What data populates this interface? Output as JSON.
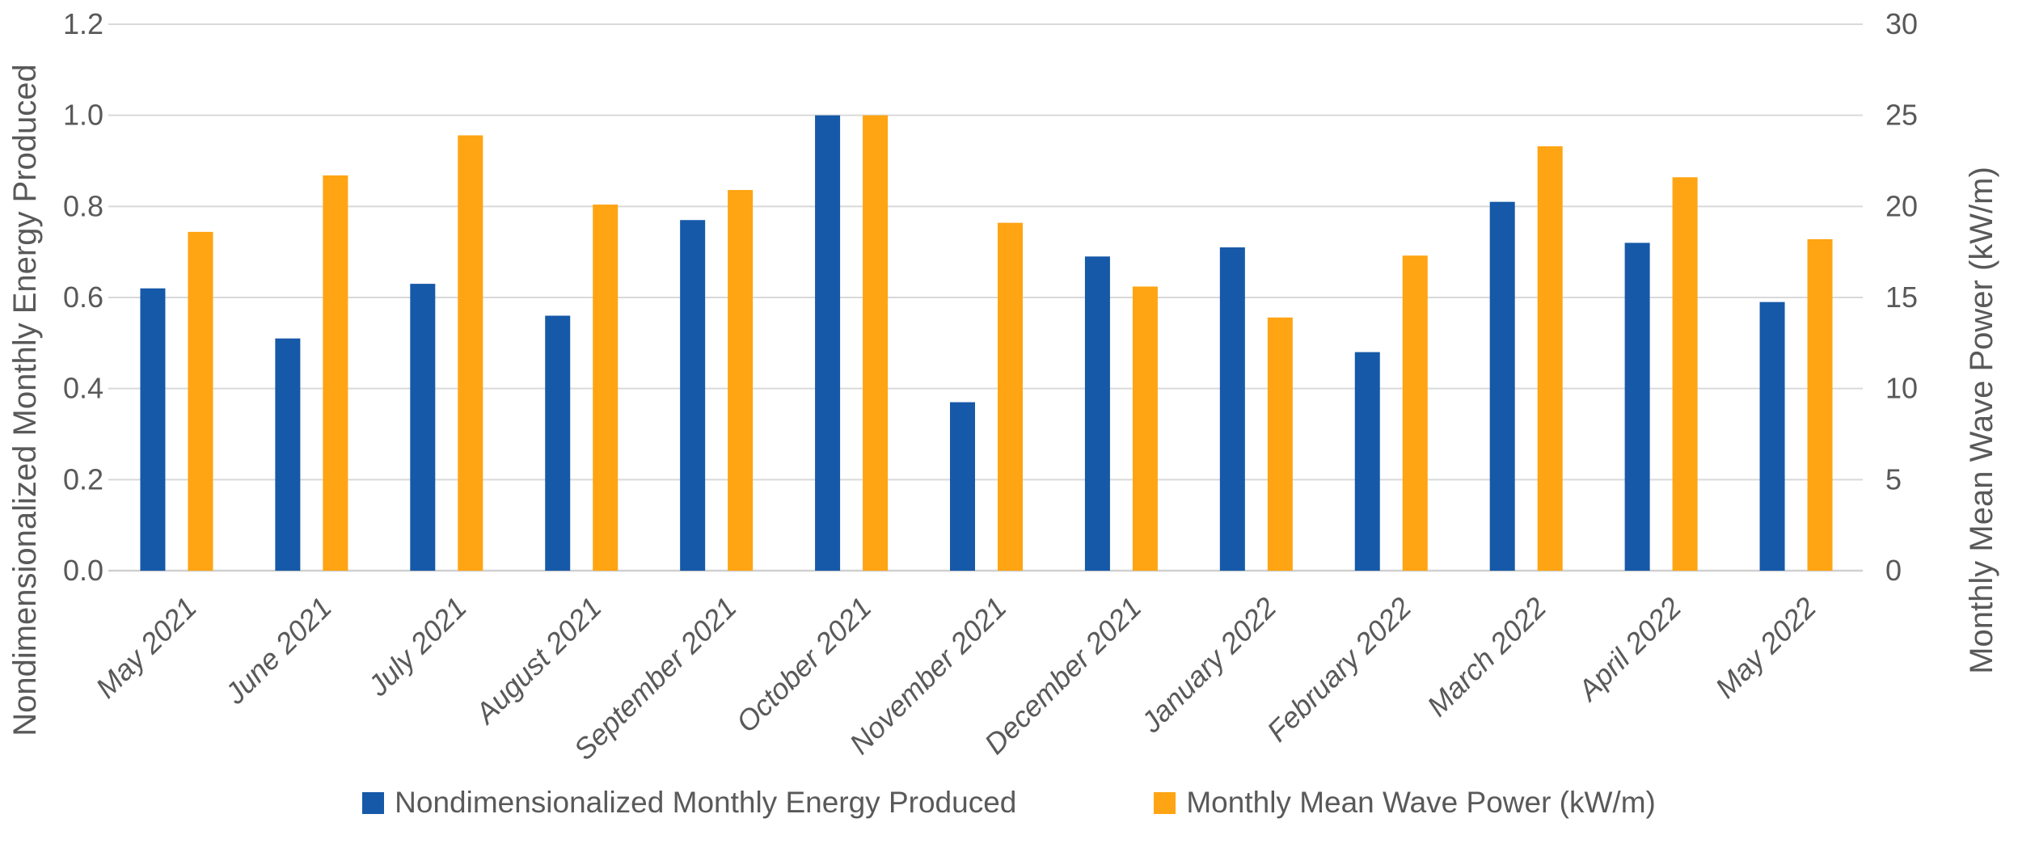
{
  "chart_data": {
    "type": "bar",
    "categories": [
      "May 2021",
      "June 2021",
      "July 2021",
      "August 2021",
      "September 2021",
      "October 2021",
      "November 2021",
      "December 2021",
      "January 2022",
      "February 2022",
      "March 2022",
      "April 2022",
      "May 2022"
    ],
    "series": [
      {
        "name": "Nondimensionalized Monthly Energy Produced",
        "axis": "left",
        "color": "#1659A8",
        "values": [
          0.62,
          0.51,
          0.63,
          0.56,
          0.77,
          1.0,
          0.37,
          0.69,
          0.71,
          0.48,
          0.81,
          0.72,
          0.59
        ]
      },
      {
        "name": "Monthly Mean Wave Power (kW/m)",
        "axis": "right",
        "color": "#FFA412",
        "values": [
          18.6,
          21.7,
          23.9,
          20.1,
          20.9,
          25.0,
          19.1,
          15.6,
          13.9,
          17.3,
          23.3,
          21.6,
          18.2
        ]
      }
    ],
    "left_axis": {
      "title": "Nondimensionalized Monthly Energy Produced",
      "min": 0,
      "max": 1.2,
      "step": 0.2,
      "tick_labels": [
        "0.0",
        "0.2",
        "0.4",
        "0.6",
        "0.8",
        "1.0",
        "1.2"
      ]
    },
    "right_axis": {
      "title": "Monthly Mean Wave Power (kW/m)",
      "min": 0,
      "max": 30,
      "step": 5,
      "tick_labels": [
        "0",
        "5",
        "10",
        "15",
        "20",
        "25",
        "30"
      ]
    },
    "grid": "horizontal",
    "legend_position": "bottom",
    "colors": {
      "text": "#595959",
      "gridline": "#D9D9D9",
      "axis_line": "#D0D0D0"
    }
  }
}
